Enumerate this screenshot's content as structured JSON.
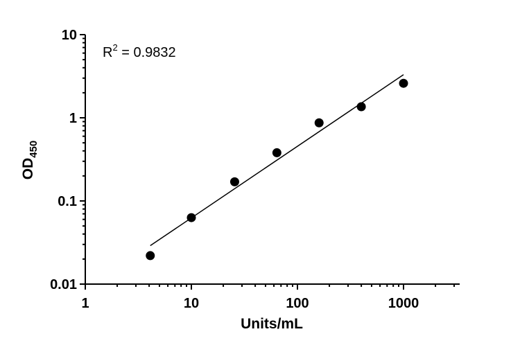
{
  "chart_data": {
    "type": "scatter",
    "title": "",
    "xlabel": "Units/mL",
    "ylabel_main": "OD",
    "ylabel_sub": "450",
    "x_scale": "log",
    "y_scale": "log",
    "xlim": [
      1,
      3000
    ],
    "ylim": [
      0.01,
      10
    ],
    "x_ticks": [
      1,
      10,
      100,
      1000
    ],
    "x_tick_labels": [
      "1",
      "10",
      "100",
      "1000"
    ],
    "y_ticks": [
      0.01,
      0.1,
      1,
      10
    ],
    "y_tick_labels": [
      "0.01",
      "0.1",
      "1",
      "10"
    ],
    "grid": false,
    "annotation": {
      "prefix": "R",
      "superscript": "2",
      "text": " =  0.9832"
    },
    "series": [
      {
        "points": [
          {
            "x": 4.1,
            "y": 0.022
          },
          {
            "x": 10,
            "y": 0.063
          },
          {
            "x": 25.6,
            "y": 0.17
          },
          {
            "x": 64,
            "y": 0.38
          },
          {
            "x": 160,
            "y": 0.87
          },
          {
            "x": 400,
            "y": 1.36
          },
          {
            "x": 1000,
            "y": 2.6
          }
        ],
        "color": "#000000"
      }
    ],
    "fit_line": {
      "x_start": 4.1,
      "y_start": 0.029,
      "x_end": 1000,
      "y_end": 3.3
    }
  }
}
